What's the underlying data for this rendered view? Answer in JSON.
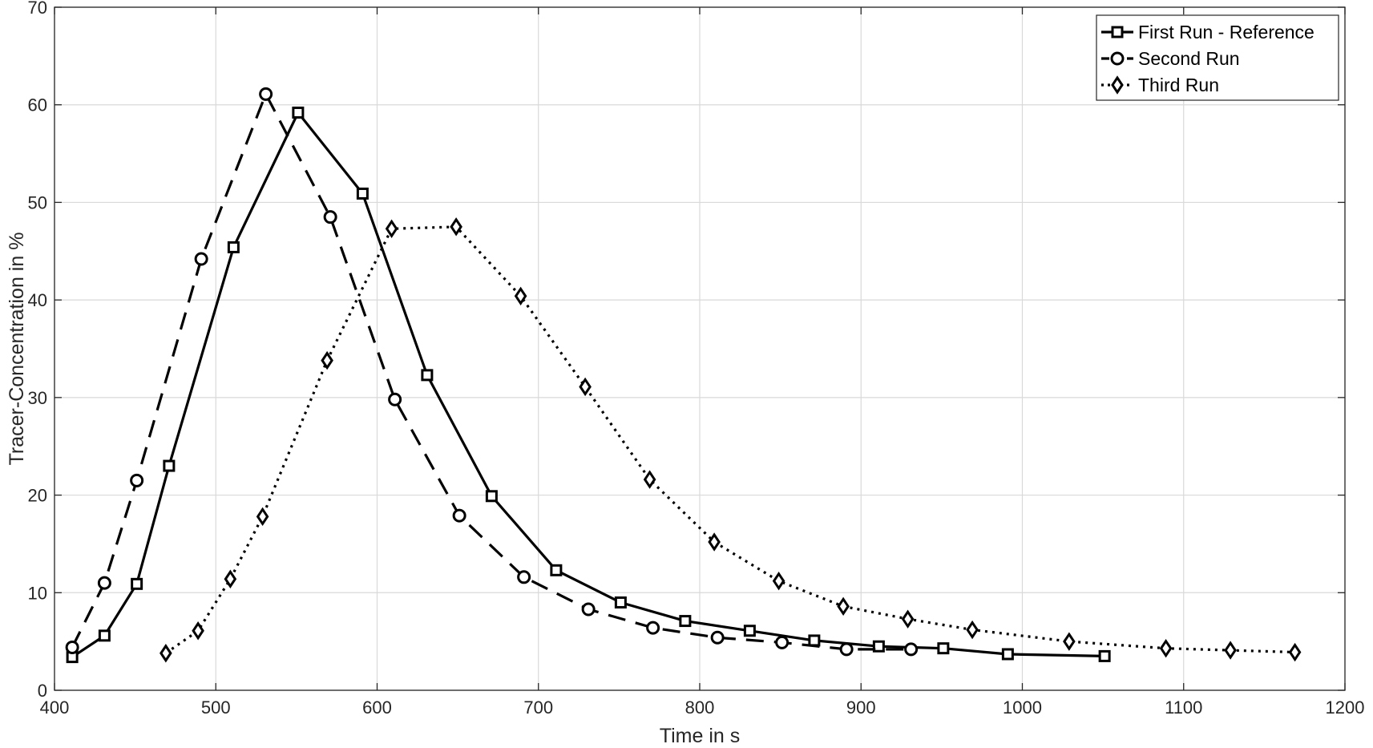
{
  "chart_data": {
    "type": "line",
    "title": "",
    "xlabel": "Time in s",
    "ylabel": "Tracer-Concentration in %",
    "xlim": [
      400,
      1200
    ],
    "ylim": [
      0,
      70
    ],
    "xticks": [
      "400",
      "500",
      "600",
      "700",
      "800",
      "900",
      "1000",
      "1100",
      "1200"
    ],
    "yticks": [
      "0",
      "10",
      "20",
      "30",
      "40",
      "50",
      "60",
      "70"
    ],
    "grid": true,
    "legend_position": "top-right",
    "series": [
      {
        "name": "First Run - Reference",
        "marker": "square",
        "line_style": "solid",
        "color": "#000000",
        "points": [
          [
            411,
            3.4
          ],
          [
            431,
            5.6
          ],
          [
            451,
            10.9
          ],
          [
            471,
            23.0
          ],
          [
            511,
            45.4
          ],
          [
            551,
            59.2
          ],
          [
            591,
            50.9
          ],
          [
            631,
            32.3
          ],
          [
            671,
            19.9
          ],
          [
            711,
            12.3
          ],
          [
            751,
            9.0
          ],
          [
            791,
            7.1
          ],
          [
            831,
            6.1
          ],
          [
            871,
            5.1
          ],
          [
            911,
            4.5
          ],
          [
            951,
            4.3
          ],
          [
            991,
            3.7
          ],
          [
            1051,
            3.5
          ]
        ]
      },
      {
        "name": "Second Run",
        "marker": "circle",
        "line_style": "dashed",
        "color": "#000000",
        "points": [
          [
            411,
            4.4
          ],
          [
            431,
            11.0
          ],
          [
            451,
            21.5
          ],
          [
            491,
            44.2
          ],
          [
            531,
            61.1
          ],
          [
            571,
            48.5
          ],
          [
            611,
            29.8
          ],
          [
            651,
            17.9
          ],
          [
            691,
            11.6
          ],
          [
            731,
            8.3
          ],
          [
            771,
            6.4
          ],
          [
            811,
            5.4
          ],
          [
            851,
            4.9
          ],
          [
            891,
            4.2
          ],
          [
            931,
            4.2
          ]
        ]
      },
      {
        "name": "Third Run",
        "marker": "diamond",
        "line_style": "dotted",
        "color": "#000000",
        "points": [
          [
            469,
            3.8
          ],
          [
            489,
            6.1
          ],
          [
            509,
            11.4
          ],
          [
            529,
            17.8
          ],
          [
            569,
            33.8
          ],
          [
            609,
            47.3
          ],
          [
            649,
            47.5
          ],
          [
            689,
            40.4
          ],
          [
            729,
            31.1
          ],
          [
            769,
            21.6
          ],
          [
            809,
            15.2
          ],
          [
            849,
            11.2
          ],
          [
            889,
            8.6
          ],
          [
            929,
            7.3
          ],
          [
            969,
            6.2
          ],
          [
            1029,
            5.0
          ],
          [
            1089,
            4.3
          ],
          [
            1129,
            4.1
          ],
          [
            1169,
            3.9
          ]
        ]
      }
    ]
  }
}
